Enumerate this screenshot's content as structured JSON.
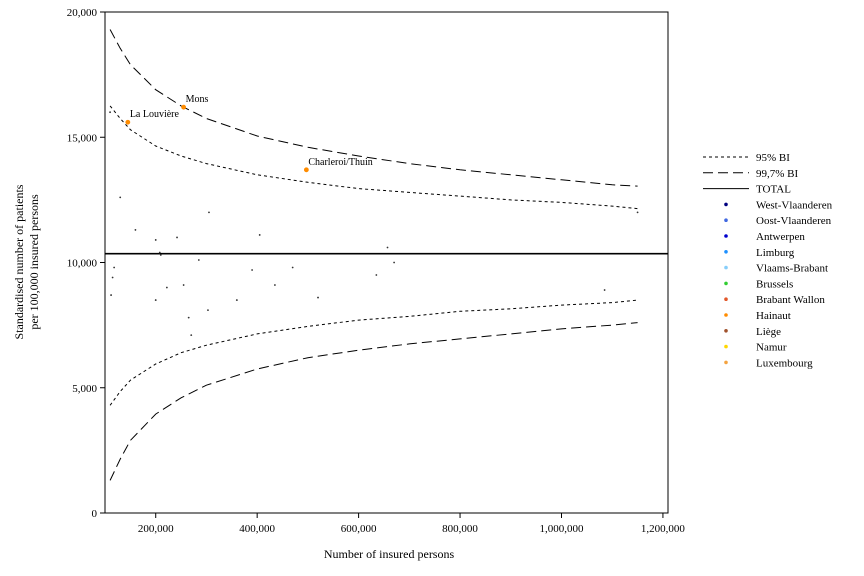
{
  "chart_data": {
    "type": "scatter",
    "title": "",
    "xlabel": "Number of insured persons",
    "ylabel_lines": [
      "Standardised number of patients",
      "per 100,000 insured persons"
    ],
    "xlim": [
      100000,
      1210000
    ],
    "ylim": [
      0,
      20000
    ],
    "x_ticks": [
      200000,
      400000,
      600000,
      800000,
      1000000,
      1200000
    ],
    "x_tick_labels": [
      "200,000",
      "400,000",
      "600,000",
      "800,000",
      "1,000,000",
      "1,200,000"
    ],
    "y_ticks": [
      0,
      5000,
      10000,
      15000,
      20000
    ],
    "y_tick_labels": [
      "0",
      "5,000",
      "10,000",
      "15,000",
      "20,000"
    ],
    "grid": false,
    "legend_position": "right",
    "total": 10350,
    "bounds": {
      "x": [
        110000,
        130000,
        150000,
        200000,
        250000,
        300000,
        400000,
        500000,
        600000,
        700000,
        800000,
        900000,
        1000000,
        1100000,
        1150000
      ],
      "upper_95": [
        16250,
        15750,
        15300,
        14650,
        14250,
        13950,
        13500,
        13200,
        12950,
        12800,
        12650,
        12500,
        12400,
        12250,
        12150
      ],
      "lower_95": [
        4300,
        4850,
        5300,
        5950,
        6400,
        6700,
        7150,
        7450,
        7700,
        7850,
        8050,
        8150,
        8300,
        8400,
        8500
      ],
      "upper_997": [
        19300,
        18550,
        17900,
        16900,
        16250,
        15750,
        15050,
        14600,
        14250,
        13950,
        13700,
        13500,
        13300,
        13100,
        13050
      ],
      "lower_997": [
        1300,
        2150,
        2900,
        3950,
        4600,
        5100,
        5750,
        6200,
        6500,
        6750,
        6950,
        7150,
        7350,
        7500,
        7600
      ]
    },
    "series": [
      {
        "name": "95% BI",
        "line_style": "short-dash"
      },
      {
        "name": "99,7% BI",
        "line_style": "long-dash"
      },
      {
        "name": "TOTAL",
        "line_style": "solid"
      }
    ],
    "region_legend": [
      {
        "name": "West-Vlaanderen",
        "color": "#00007f"
      },
      {
        "name": "Oost-Vlaanderen",
        "color": "#4169e1"
      },
      {
        "name": "Antwerpen",
        "color": "#0000cd"
      },
      {
        "name": "Limburg",
        "color": "#1e90ff"
      },
      {
        "name": "Vlaams-Brabant",
        "color": "#87cefa"
      },
      {
        "name": "Brussels",
        "color": "#32cd32"
      },
      {
        "name": "Brabant Wallon",
        "color": "#e2582b"
      },
      {
        "name": "Hainaut",
        "color": "#ff8c00"
      },
      {
        "name": "Liège",
        "color": "#a0522d"
      },
      {
        "name": "Namur",
        "color": "#ffd700"
      },
      {
        "name": "Luxembourg",
        "color": "#f4a340"
      }
    ],
    "points": [
      {
        "x": 110000,
        "y": 16000,
        "color": "#333333"
      },
      {
        "x": 112000,
        "y": 8700,
        "color": "#333333"
      },
      {
        "x": 115000,
        "y": 9400,
        "color": "#333333"
      },
      {
        "x": 118000,
        "y": 9800,
        "color": "#333333"
      },
      {
        "x": 130000,
        "y": 12600,
        "color": "#333333"
      },
      {
        "x": 160000,
        "y": 11300,
        "color": "#333333"
      },
      {
        "x": 200000,
        "y": 10900,
        "color": "#333333"
      },
      {
        "x": 200000,
        "y": 8500,
        "color": "#333333"
      },
      {
        "x": 208000,
        "y": 10400,
        "color": "#333333"
      },
      {
        "x": 210000,
        "y": 10300,
        "color": "#333333"
      },
      {
        "x": 222000,
        "y": 9000,
        "color": "#333333"
      },
      {
        "x": 242000,
        "y": 11000,
        "color": "#333333"
      },
      {
        "x": 255000,
        "y": 9100,
        "color": "#333333"
      },
      {
        "x": 265000,
        "y": 7800,
        "color": "#333333"
      },
      {
        "x": 270000,
        "y": 7100,
        "color": "#333333"
      },
      {
        "x": 285000,
        "y": 10100,
        "color": "#333333"
      },
      {
        "x": 303000,
        "y": 8100,
        "color": "#333333"
      },
      {
        "x": 305000,
        "y": 12000,
        "color": "#333333"
      },
      {
        "x": 360000,
        "y": 8500,
        "color": "#333333"
      },
      {
        "x": 390000,
        "y": 9700,
        "color": "#333333"
      },
      {
        "x": 405000,
        "y": 11100,
        "color": "#333333"
      },
      {
        "x": 435000,
        "y": 9100,
        "color": "#333333"
      },
      {
        "x": 470000,
        "y": 9800,
        "color": "#333333"
      },
      {
        "x": 520000,
        "y": 8600,
        "color": "#333333"
      },
      {
        "x": 635000,
        "y": 9500,
        "color": "#333333"
      },
      {
        "x": 657000,
        "y": 10600,
        "color": "#333333"
      },
      {
        "x": 670000,
        "y": 10000,
        "color": "#333333"
      },
      {
        "x": 1085000,
        "y": 8900,
        "color": "#333333"
      },
      {
        "x": 1150000,
        "y": 12000,
        "color": "#333333"
      },
      {
        "x": 145000,
        "y": 15600,
        "color": "#ff8c00",
        "label": "La Louvière"
      },
      {
        "x": 255000,
        "y": 16200,
        "color": "#ff8c00",
        "label": "Mons"
      },
      {
        "x": 497000,
        "y": 13700,
        "color": "#ff8c00",
        "label": "Charleroi/Thuin"
      }
    ]
  }
}
